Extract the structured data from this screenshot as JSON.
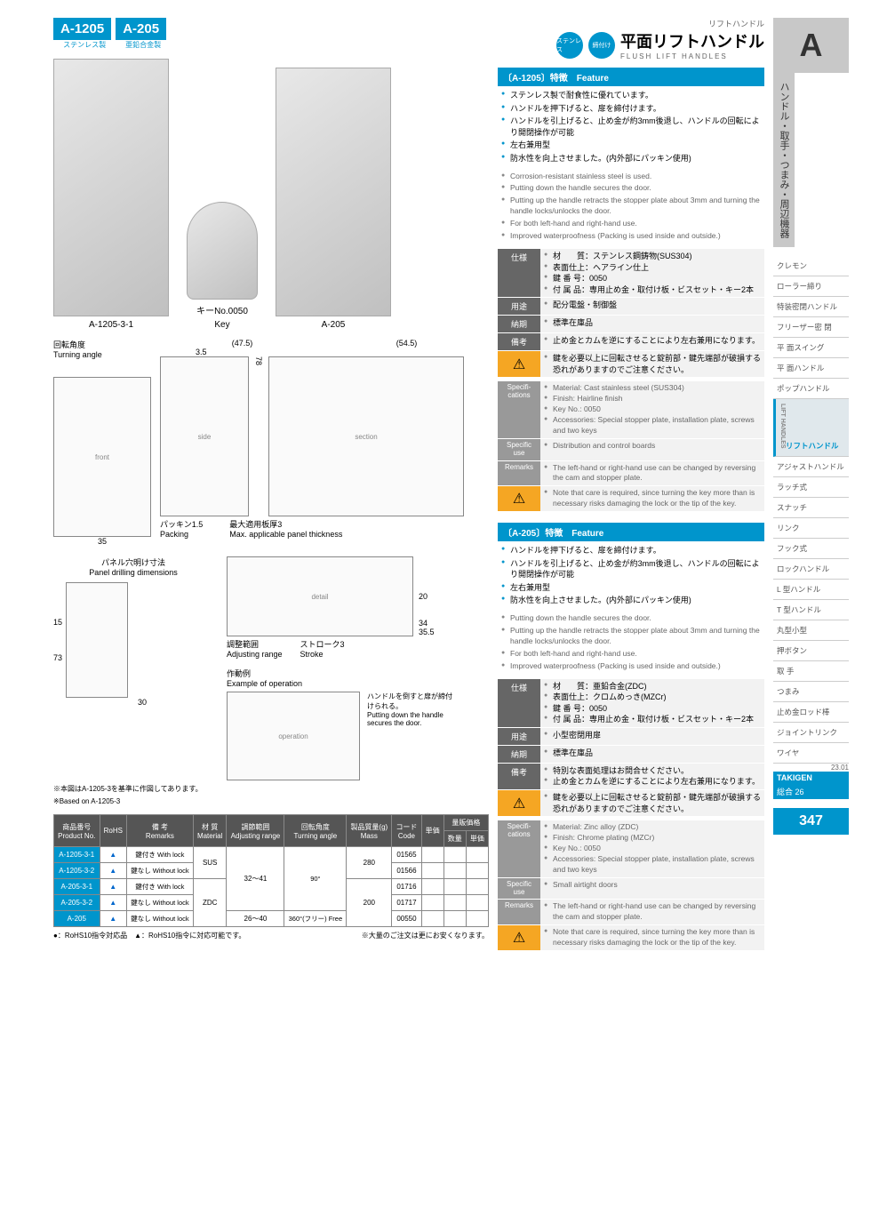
{
  "models": {
    "a": {
      "code": "A-1205",
      "sub": "ステンレス製"
    },
    "b": {
      "code": "A-205",
      "sub": "亜鉛合金製"
    }
  },
  "title": {
    "top": "リフトハンドル",
    "jp": "平面リフトハンドル",
    "en": "FLUSH LIFT HANDLES",
    "badge1": "ステンレス",
    "badge2": "締付け"
  },
  "images": {
    "lbl1": "A-1205-3-1",
    "lbl_key": "キーNo.0050",
    "lbl_key_en": "Key",
    "lbl2": "A-205"
  },
  "drawings": {
    "turning_jp": "回転角度",
    "turning_en": "Turning angle",
    "d1": "(47.5)",
    "d2": "(54.5)",
    "d3": "3.5",
    "d4": "78",
    "d5": "35",
    "packing_jp": "パッキン1.5",
    "packing_en": "Packing",
    "max_jp": "最大適用板厚3",
    "max_en": "Max. applicable panel thickness",
    "panel_jp": "パネル穴明け寸法",
    "panel_en": "Panel drilling dimensions",
    "d6": "15",
    "d7": "73",
    "d8": "30",
    "d9": "20",
    "d10": "34",
    "d11": "35.5",
    "adj_jp": "調整範囲",
    "adj_en": "Adjusting range",
    "stroke_jp": "ストローク3",
    "stroke_en": "Stroke",
    "op_jp": "作動例",
    "op_en": "Example of operation",
    "op_note_jp": "ハンドルを倒すと扉が締付けられる。",
    "op_note_en": "Putting down the handle secures the door.",
    "base_jp": "※本図はA-1205-3を基準に作図してあります。",
    "base_en": "※Based on A-1205-3"
  },
  "a1205": {
    "hdr": "〔A-1205〕特徴　Feature",
    "jp": [
      "ステンレス製で耐食性に優れています。",
      "ハンドルを押下げると、扉を締付けます。",
      "ハンドルを引上げると、止め金が約3mm後退し、ハンドルの回転により開閉操作が可能",
      "左右兼用型",
      "防水性を向上させました。(内外部にパッキン使用)"
    ],
    "en": [
      "Corrosion-resistant stainless steel is used.",
      "Putting down the handle secures the door.",
      "Putting up the handle retracts the stopper plate about 3mm and turning the handle locks/unlocks the door.",
      "For both left-hand and right-hand use.",
      "Improved waterproofness (Packing is used inside and outside.)"
    ],
    "spec_lbl": "仕様",
    "spec": [
      "材　　質：ステンレス鋼鋳物(SUS304)",
      "表面仕上：ヘアライン仕上",
      "鍵 番 号：0050",
      "付 属 品：専用止め金・取付け板・ビスセット・キー2本"
    ],
    "use_lbl": "用途",
    "use": "配分電盤・制御盤",
    "deliv_lbl": "納期",
    "deliv": "標準在庫品",
    "note_lbl": "備考",
    "note": "止め金とカムを逆にすることにより左右兼用になります。",
    "warn": "鍵を必要以上に回転させると錠前部・鍵先端部が破損する恐れがありますのでご注意ください。",
    "spec_lbl_en": "Specifi-\ncations",
    "spec_en": [
      "Material: Cast stainless steel (SUS304)",
      "Finish: Hairline finish",
      "Key No.: 0050",
      "Accessories: Special stopper plate, installation plate, screws and two keys"
    ],
    "use_lbl_en": "Specific use",
    "use_en": "Distribution and control boards",
    "note_lbl_en": "Remarks",
    "note_en": "The left-hand or right-hand use can be changed by reversing the cam and stopper plate.",
    "warn_en": "Note that care is required, since turning the key more than is necessary risks damaging the lock or the tip of the key."
  },
  "a205": {
    "hdr": "〔A-205〕特徴　Feature",
    "jp": [
      "ハンドルを押下げると、扉を締付けます。",
      "ハンドルを引上げると、止め金が約3mm後退し、ハンドルの回転により開閉操作が可能",
      "左右兼用型",
      "防水性を向上させました。(内外部にパッキン使用)"
    ],
    "en": [
      "Putting down the handle secures the door.",
      "Putting up the handle retracts the stopper plate about 3mm and turning the handle locks/unlocks the door.",
      "For both left-hand and right-hand use.",
      "Improved waterproofness (Packing is used inside and outside.)"
    ],
    "spec_lbl": "仕様",
    "spec": [
      "材　　質：亜鉛合金(ZDC)",
      "表面仕上：クロムめっき(MZCr)",
      "鍵 番 号：0050",
      "付 属 品：専用止め金・取付け板・ビスセット・キー2本"
    ],
    "use_lbl": "用途",
    "use": "小型密閉用扉",
    "deliv_lbl": "納期",
    "deliv": "標準在庫品",
    "note_lbl": "備考",
    "note1": "特別な表面処理はお問合せください。",
    "note2": "止め金とカムを逆にすることにより左右兼用になります。",
    "warn": "鍵を必要以上に回転させると錠前部・鍵先端部が破損する恐れがありますのでご注意ください。",
    "spec_en": [
      "Material: Zinc alloy (ZDC)",
      "Finish: Chrome plating (MZCr)",
      "Key No.: 0050",
      "Accessories: Special stopper plate, installation plate, screws and two keys"
    ],
    "use_en": "Small airtight doors",
    "note_en": "The left-hand or right-hand use can be changed by reversing the cam and stopper plate.",
    "warn_en": "Note that care is required, since turning the key more than is necessary risks damaging the lock or the tip of the key."
  },
  "table": {
    "hdrs": {
      "pn_jp": "商品番号",
      "pn_en": "Product No.",
      "rohs": "RoHS",
      "rem_jp": "備 考",
      "rem_en": "Remarks",
      "mat_jp": "材 質",
      "mat_en": "Material",
      "adj_jp": "調節範囲",
      "adj_en": "Adjusting range",
      "ang_jp": "回転角度",
      "ang_en": "Turning angle",
      "mass_jp": "製品質量(g)",
      "mass_en": "Mass",
      "code_jp": "コード",
      "code_en": "Code",
      "price": "単価",
      "bulk_jp": "量販価格",
      "qty": "数量",
      "bprice": "単価"
    },
    "rows": [
      {
        "pn": "A-1205-3-1",
        "rohs": "▲",
        "rem": "鍵付き With lock",
        "mat": "SUS",
        "adj": "32～41",
        "ang": "90°",
        "mass": "280",
        "code": "01565"
      },
      {
        "pn": "A-1205-3-2",
        "rohs": "▲",
        "rem": "鍵なし Without lock",
        "mat": "",
        "adj": "",
        "ang": "",
        "mass": "",
        "code": "01566"
      },
      {
        "pn": "A-205-3-1",
        "rohs": "▲",
        "rem": "鍵付き With lock",
        "mat": "ZDC",
        "adj": "",
        "ang": "",
        "mass": "200",
        "code": "01716"
      },
      {
        "pn": "A-205-3-2",
        "rohs": "▲",
        "rem": "鍵なし Without lock",
        "mat": "",
        "adj": "",
        "ang": "",
        "mass": "",
        "code": "01717"
      },
      {
        "pn": "A-205",
        "rohs": "▲",
        "rem": "鍵なし Without lock",
        "mat": "",
        "adj": "26～40",
        "ang": "360°(フリー) Free",
        "mass": "",
        "code": "00550"
      }
    ],
    "foot1": "●：RoHS10指令対応品　▲：RoHS10指令に対応可能です。",
    "foot2": "※大量のご注文は更にお安くなります。"
  },
  "sidebar": {
    "letter": "A",
    "cat": "ハンドル・取手・つまみ・周辺機器",
    "items": [
      "クレモン",
      "ローラー締り",
      "特装密閉ハンドル",
      "フリーザー密 閉",
      "平 面スイング",
      "平 面ハンドル",
      "ポップハンドル",
      "リフトハンドル",
      "アジャストハンドル",
      "ラッチ式",
      "スナッチ",
      "リンク",
      "フック式",
      "ロックハンドル",
      "L 型ハンドル",
      "T 型ハンドル",
      "丸型小型",
      "押ボタン",
      "取 手",
      "つまみ",
      "止め金ロッド棒",
      "ジョイントリンク",
      "ワイヤ"
    ],
    "active_idx": 7,
    "side_en": "LIFT HANDLES"
  },
  "footer": {
    "ver": "23.01",
    "brand": "TAKIGEN",
    "cat": "総合 26",
    "page": "347"
  }
}
